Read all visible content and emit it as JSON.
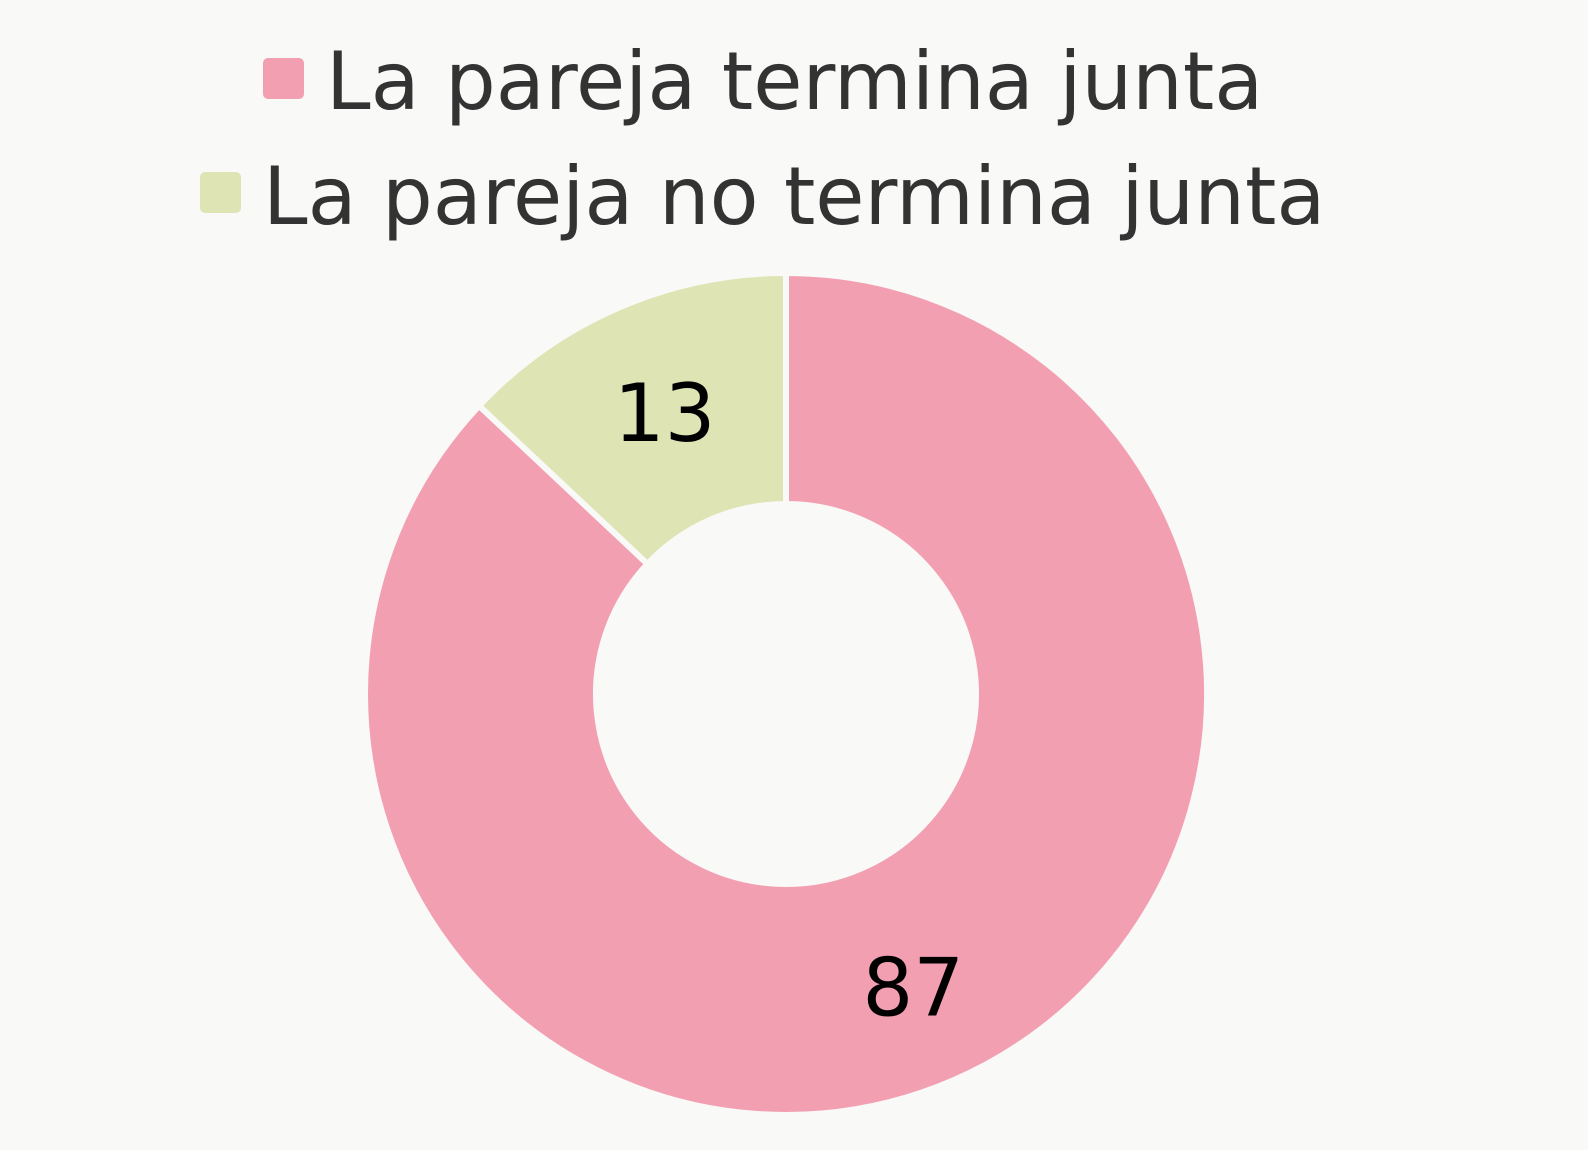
{
  "chart_data": {
    "type": "pie",
    "donut": true,
    "categories": [
      "La pareja termina junta",
      "La pareja no termina junta"
    ],
    "values": [
      87,
      13
    ],
    "colors": [
      "#f39fb2",
      "#dee4b4"
    ],
    "title": "",
    "legend_position": "top",
    "data_labels": [
      "87",
      "13"
    ]
  },
  "legend": {
    "items": [
      {
        "label": "La pareja termina junta",
        "color": "#f39fb2"
      },
      {
        "label": "La pareja no termina junta",
        "color": "#dee4b4"
      }
    ]
  }
}
